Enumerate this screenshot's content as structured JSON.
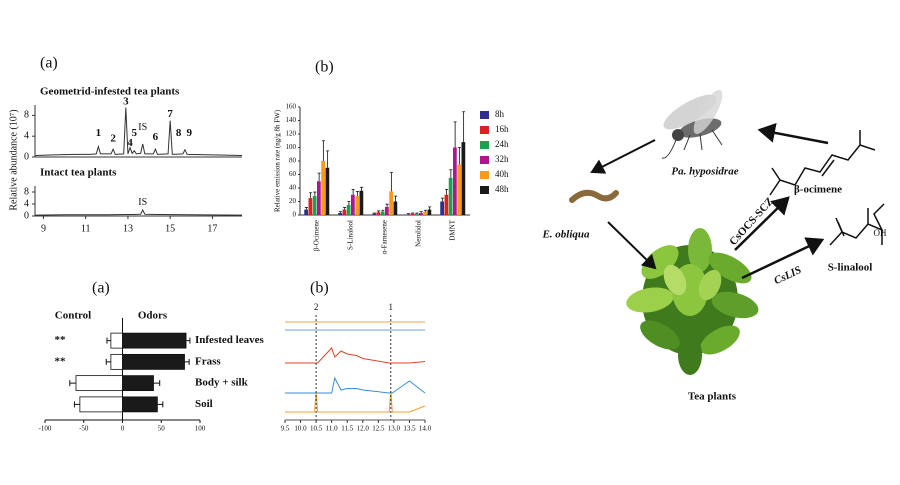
{
  "chart_data": [
    {
      "type": "line",
      "panel_label": "(a)",
      "title": "Geometrid-infested tea plants",
      "y_label": "Relative abundance (10⁷)",
      "x": [
        8.6,
        9.5,
        10.5,
        11.2,
        11.5,
        11.6,
        11.7,
        12.2,
        12.3,
        12.4,
        12.8,
        12.9,
        13.0,
        13.1,
        13.2,
        13.3,
        13.4,
        13.6,
        13.7,
        13.8,
        14.2,
        14.3,
        14.4,
        14.9,
        15.0,
        15.1,
        15.6,
        15.7,
        15.8,
        17.0,
        18.4
      ],
      "values": [
        0.3,
        0.4,
        0.5,
        0.5,
        0.6,
        2,
        0.6,
        0.6,
        1.5,
        0.5,
        0.6,
        9.5,
        0.6,
        1.8,
        0.7,
        1.2,
        0.6,
        0.7,
        2.5,
        0.6,
        0.6,
        1.5,
        0.5,
        0.6,
        7,
        0.5,
        0.6,
        1.4,
        0.5,
        0.4,
        0.3
      ],
      "color": "#333333",
      "xlim": [
        8.6,
        18.4
      ],
      "ylim": [
        0,
        10
      ],
      "yticks": [
        0,
        4,
        8
      ],
      "annotations": [
        {
          "label": "1",
          "x": 11.6,
          "y": 4.5
        },
        {
          "label": "2",
          "x": 12.3,
          "y": 3.5
        },
        {
          "label": "3",
          "x": 12.9,
          "y": 10.6
        },
        {
          "label": "4",
          "x": 13.1,
          "y": 2.6
        },
        {
          "label": "5",
          "x": 13.3,
          "y": 4.5
        },
        {
          "label": "IS",
          "x": 13.7,
          "y": 5.6
        },
        {
          "label": "6",
          "x": 14.3,
          "y": 3.8
        },
        {
          "label": "7",
          "x": 15.0,
          "y": 8.2
        },
        {
          "label": "8",
          "x": 15.4,
          "y": 4.5
        },
        {
          "label": "9",
          "x": 15.9,
          "y": 4.5
        }
      ]
    },
    {
      "type": "line",
      "title": "Intact tea plants",
      "x": [
        8.6,
        10,
        12,
        13.2,
        13.6,
        13.7,
        13.8,
        14.5,
        16,
        18.4
      ],
      "values": [
        0.3,
        0.4,
        0.4,
        0.5,
        0.6,
        2,
        0.6,
        0.5,
        0.4,
        0.3
      ],
      "color": "#333333",
      "xlim": [
        8.6,
        18.4
      ],
      "ylim": [
        0,
        10
      ],
      "yticks": [
        0,
        4,
        8
      ],
      "xticks": [
        9,
        11,
        13,
        15,
        17
      ],
      "annotations": [
        {
          "label": "IS",
          "x": 13.7,
          "y": 4.5
        }
      ]
    },
    {
      "type": "bar",
      "panel_label": "(b)",
      "y_label": "Relative emission rate (ng/g 8h FW)",
      "categories": [
        "β-Ocimene",
        "S-Linalool",
        "α-Farnesene",
        "Nerolidol",
        "DMNT"
      ],
      "series": [
        {
          "name": "8h",
          "color": "#2e2e8f",
          "values": [
            8,
            3,
            2,
            1,
            20
          ],
          "errors": [
            3,
            2,
            1,
            1,
            5
          ]
        },
        {
          "name": "16h",
          "color": "#e02020",
          "values": [
            25,
            8,
            4,
            2,
            30
          ],
          "errors": [
            8,
            3,
            2,
            1,
            8
          ]
        },
        {
          "name": "24h",
          "color": "#1aa34a",
          "values": [
            28,
            15,
            5,
            2,
            55
          ],
          "errors": [
            6,
            5,
            2,
            1,
            12
          ]
        },
        {
          "name": "32h",
          "color": "#b0178f",
          "values": [
            50,
            30,
            12,
            3,
            100
          ],
          "errors": [
            12,
            8,
            4,
            2,
            38
          ]
        },
        {
          "name": "40h",
          "color": "#f59a1b",
          "values": [
            80,
            28,
            35,
            5,
            75
          ],
          "errors": [
            30,
            7,
            28,
            2,
            25
          ]
        },
        {
          "name": "48h",
          "color": "#1a1a1a",
          "values": [
            70,
            36,
            20,
            8,
            108
          ],
          "errors": [
            25,
            5,
            8,
            4,
            45
          ]
        }
      ],
      "ylim": [
        0,
        160
      ],
      "yticks": [
        0,
        20,
        40,
        60,
        80,
        100,
        120,
        140,
        160
      ]
    },
    {
      "type": "barh",
      "panel_label": "(a)",
      "categories": [
        "Infested leaves",
        "Frass",
        "Body + silk",
        "Soil"
      ],
      "series": [
        {
          "name": "Control",
          "color": "#ffffff",
          "values": [
            -15,
            -15,
            -60,
            -55
          ],
          "errors": [
            5,
            6,
            8,
            7
          ]
        },
        {
          "name": "Odors",
          "color": "#1a1a1a",
          "values": [
            82,
            80,
            40,
            45
          ],
          "errors": [
            5,
            6,
            8,
            7
          ]
        }
      ],
      "significance": [
        "**",
        "**",
        null,
        null
      ],
      "xlim": [
        -100,
        100
      ],
      "xticks": [
        -100,
        -50,
        0,
        50,
        100
      ]
    },
    {
      "type": "line",
      "panel_label": "(b)",
      "x": [
        9.5,
        10.45,
        10.5,
        10.55,
        11.0,
        11.1,
        11.3,
        11.5,
        11.8,
        12.0,
        12.85,
        12.9,
        12.95,
        13.5,
        14.0
      ],
      "series": [
        {
          "color": "#f5a442",
          "values": [
            0,
            0,
            0.5,
            0,
            0,
            0,
            0,
            0,
            0,
            0,
            0,
            0.5,
            0,
            0,
            0
          ]
        },
        {
          "color": "#6aa6d9",
          "values": [
            0,
            0,
            0,
            0,
            0,
            0,
            0,
            0,
            0,
            0,
            0,
            0,
            0,
            0,
            0
          ]
        },
        {
          "color": "#d9452b",
          "values": [
            0,
            0,
            0,
            0,
            10,
            4,
            8,
            6,
            5,
            3,
            0,
            0,
            0,
            0,
            1
          ]
        },
        {
          "color": "#3b8fd6",
          "values": [
            0,
            0,
            0,
            0,
            0,
            10,
            2,
            3,
            3,
            2,
            0,
            0,
            0,
            8,
            0
          ]
        },
        {
          "color": "#f0a030",
          "values": [
            0,
            0,
            14,
            0,
            0,
            0,
            0,
            0,
            0,
            0,
            0,
            14,
            0,
            0,
            4
          ]
        }
      ],
      "xlim": [
        9.5,
        14.0
      ],
      "xticks": [
        9.5,
        {
          "value": 10,
          "label": "10.0"
        },
        10.5,
        {
          "value": 11,
          "label": "11.0"
        },
        11.5,
        {
          "value": 12,
          "label": "12.0"
        },
        12.5,
        {
          "value": 13,
          "label": "13.0"
        },
        13.5,
        {
          "value": 14,
          "label": "14.0"
        }
      ],
      "peak_labels": [
        {
          "label": "2",
          "x": 10.5
        },
        {
          "label": "1",
          "x": 12.9
        }
      ]
    }
  ],
  "diagram": {
    "nodes": [
      {
        "label": "Pa. hyposidrae"
      },
      {
        "label": "E. obliqua"
      },
      {
        "label": "Tea plants"
      },
      {
        "label": "β-ocimene"
      },
      {
        "label": "S-linalool"
      }
    ],
    "edges": [
      {
        "label": "CsOCS-SCZ"
      },
      {
        "label": "CsLIS"
      }
    ],
    "hydroxyl": "OH"
  }
}
